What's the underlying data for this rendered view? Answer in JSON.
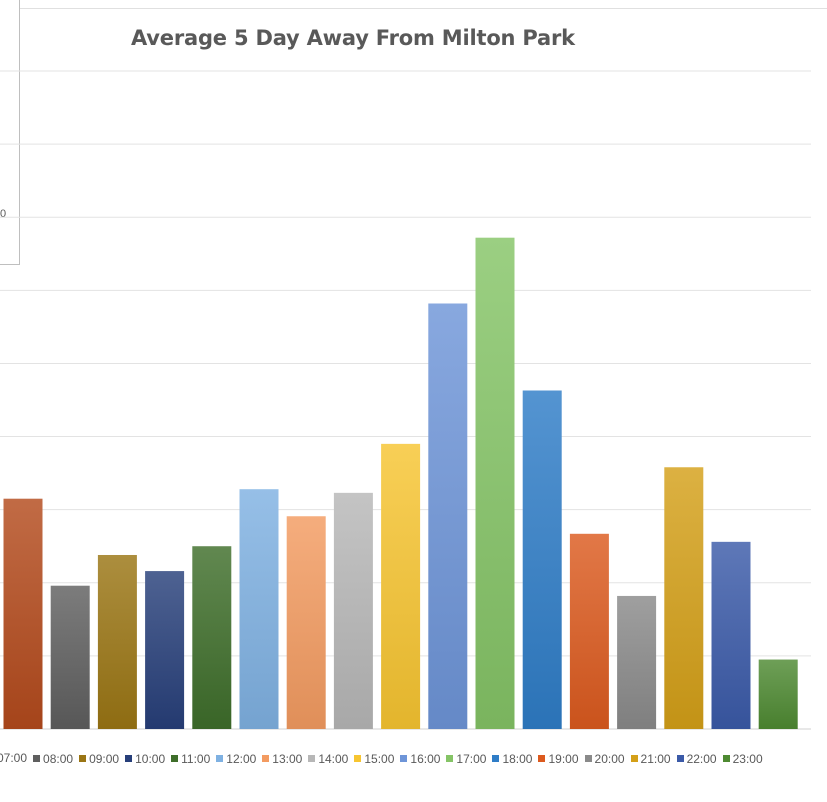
{
  "chart_data": {
    "type": "bar",
    "title": "Average 5 Day Away From Milton Park",
    "categories": [
      "07:00",
      "08:00",
      "09:00",
      "10:00",
      "11:00",
      "12:00",
      "13:00",
      "14:00",
      "15:00",
      "16:00",
      "17:00",
      "18:00",
      "19:00",
      "20:00",
      "21:00",
      "22:00",
      "23:00"
    ],
    "values": [
      315,
      196,
      238,
      216,
      250,
      328,
      291,
      323,
      390,
      582,
      672,
      463,
      267,
      182,
      358,
      256,
      95
    ],
    "ylim": [
      0,
      900
    ],
    "grid": true,
    "legend_position": "bottom",
    "colors": [
      "#b34a1c",
      "#5f5f5f",
      "#9a7514",
      "#273f7a",
      "#3e6e2a",
      "#7fb1e2",
      "#f39b61",
      "#b7b7b7",
      "#f7c531",
      "#6e95d8",
      "#85c466",
      "#2f7dc7",
      "#dc5a1e",
      "#8a8a8a",
      "#d4a018",
      "#3b5aa8",
      "#4e8a32"
    ],
    "overlay_tick_label": "0"
  }
}
